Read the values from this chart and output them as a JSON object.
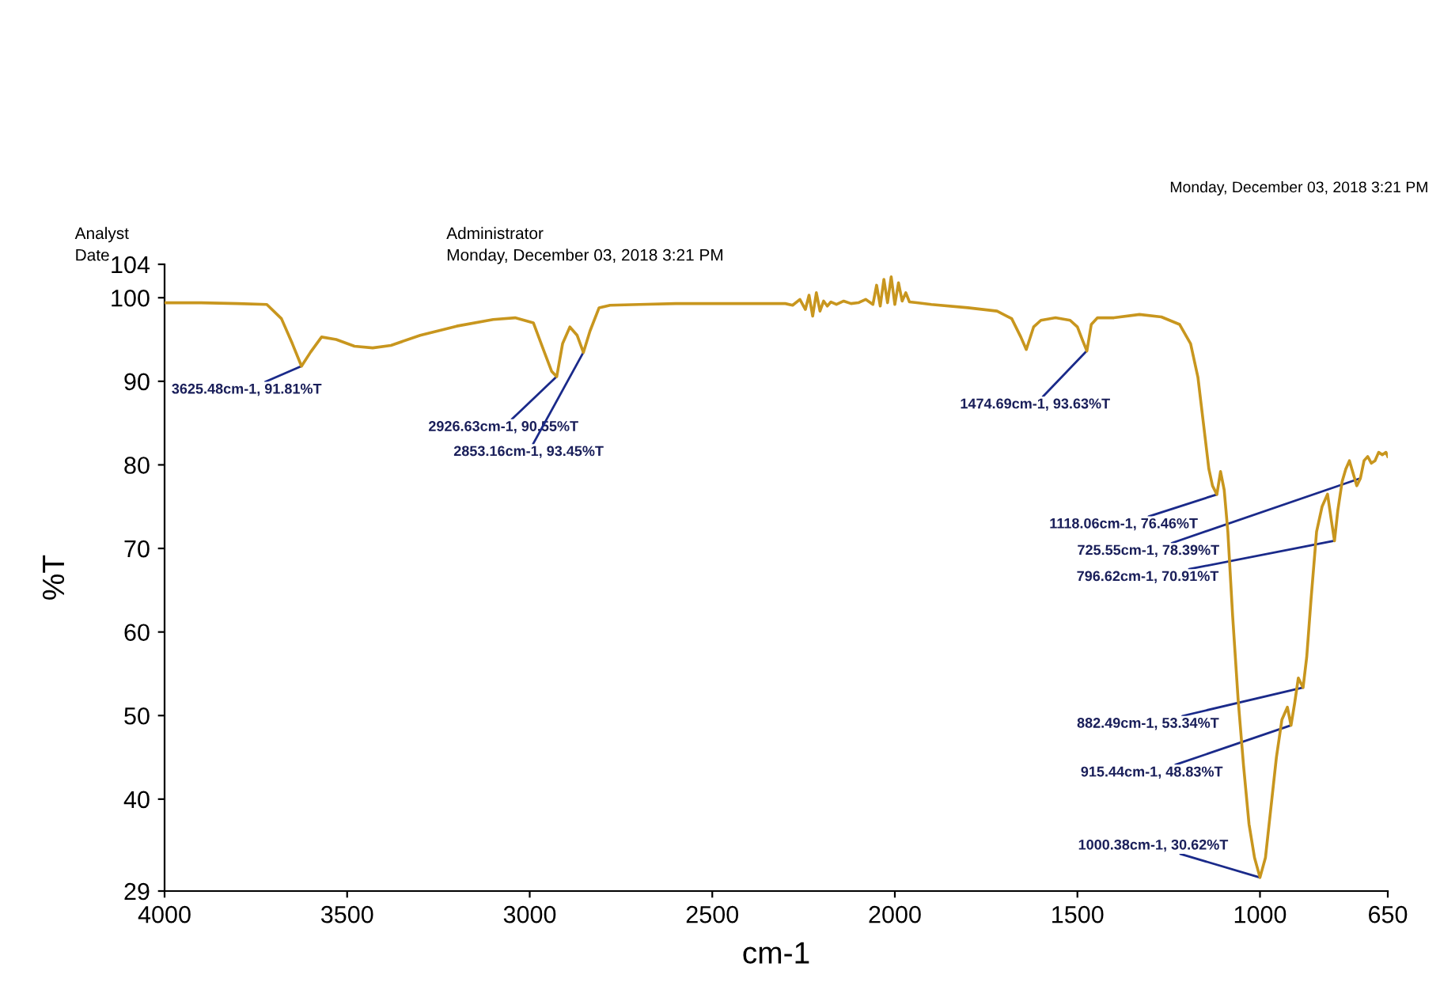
{
  "chart_data": {
    "type": "line",
    "xlabel": "cm-1",
    "ylabel": "%T",
    "xlim": [
      4000,
      650
    ],
    "xticks": [
      4000,
      3500,
      3000,
      2500,
      2000,
      1500,
      1000,
      650
    ],
    "ylim": [
      29,
      104
    ],
    "yticks": [
      29,
      40,
      50,
      60,
      70,
      80,
      90,
      100,
      104
    ],
    "grid": false,
    "marker": "none",
    "line_style": "solid",
    "series": [
      {
        "color": "#c8961e",
        "x": [
          4000,
          3900,
          3800,
          3720,
          3680,
          3650,
          3625,
          3600,
          3570,
          3530,
          3480,
          3430,
          3380,
          3300,
          3200,
          3100,
          3040,
          2990,
          2960,
          2940,
          2926,
          2910,
          2890,
          2870,
          2853,
          2835,
          2810,
          2780,
          2700,
          2600,
          2500,
          2400,
          2300,
          2280,
          2260,
          2245,
          2235,
          2225,
          2215,
          2205,
          2195,
          2185,
          2175,
          2160,
          2140,
          2120,
          2100,
          2080,
          2060,
          2050,
          2040,
          2030,
          2020,
          2010,
          2000,
          1990,
          1980,
          1970,
          1960,
          1940,
          1900,
          1800,
          1720,
          1680,
          1655,
          1640,
          1620,
          1600,
          1560,
          1520,
          1500,
          1485,
          1474,
          1462,
          1445,
          1400,
          1330,
          1270,
          1220,
          1190,
          1170,
          1155,
          1140,
          1130,
          1118,
          1108,
          1098,
          1088,
          1075,
          1060,
          1045,
          1030,
          1015,
          1000,
          985,
          970,
          955,
          940,
          925,
          915,
          905,
          895,
          882,
          872,
          860,
          845,
          830,
          815,
          805,
          796,
          787,
          775,
          765,
          755,
          745,
          735,
          725,
          715,
          705,
          695,
          685,
          675,
          665,
          655,
          650
        ],
        "values": [
          99.4,
          99.4,
          99.3,
          99.2,
          97.5,
          94.5,
          91.81,
          93.5,
          95.3,
          95.0,
          94.2,
          94.0,
          94.3,
          95.5,
          96.6,
          97.4,
          97.6,
          97.0,
          93.5,
          91.2,
          90.55,
          94.5,
          96.5,
          95.5,
          93.45,
          96.0,
          98.8,
          99.1,
          99.2,
          99.3,
          99.3,
          99.3,
          99.3,
          99.1,
          99.8,
          98.6,
          100.3,
          97.8,
          100.6,
          98.4,
          99.6,
          99.0,
          99.5,
          99.2,
          99.6,
          99.3,
          99.4,
          99.8,
          99.2,
          101.5,
          99.0,
          102.2,
          99.4,
          102.5,
          99.2,
          101.8,
          99.6,
          100.6,
          99.5,
          99.4,
          99.2,
          98.8,
          98.4,
          97.5,
          95.3,
          93.8,
          96.5,
          97.3,
          97.6,
          97.3,
          96.5,
          94.8,
          93.63,
          96.8,
          97.6,
          97.6,
          98.0,
          97.7,
          96.8,
          94.5,
          90.5,
          85.0,
          79.5,
          77.5,
          76.46,
          79.2,
          77.0,
          72.0,
          62.0,
          52.0,
          44.0,
          37.0,
          33.0,
          30.62,
          33.0,
          39.0,
          45.0,
          49.5,
          51.0,
          48.83,
          51.5,
          54.5,
          53.34,
          57.0,
          64.0,
          72.0,
          75.0,
          76.5,
          73.5,
          70.91,
          74.5,
          78.0,
          79.5,
          80.5,
          79.0,
          77.5,
          78.39,
          80.5,
          81.0,
          80.2,
          80.5,
          81.5,
          81.2,
          81.5,
          81.0
        ]
      }
    ],
    "annotations": [
      {
        "text": "3625.48cm-1, 91.81%T",
        "x": 3625.48,
        "y": 91.81
      },
      {
        "text": "2926.63cm-1, 90.55%T",
        "x": 2926.63,
        "y": 90.55
      },
      {
        "text": "2853.16cm-1, 93.45%T",
        "x": 2853.16,
        "y": 93.45
      },
      {
        "text": "1474.69cm-1, 93.63%T",
        "x": 1474.69,
        "y": 93.63
      },
      {
        "text": "1118.06cm-1, 76.46%T",
        "x": 1118.06,
        "y": 76.46
      },
      {
        "text": "725.55cm-1, 78.39%T",
        "x": 725.55,
        "y": 78.39
      },
      {
        "text": "796.62cm-1, 70.91%T",
        "x": 796.62,
        "y": 70.91
      },
      {
        "text": "882.49cm-1, 53.34%T",
        "x": 882.49,
        "y": 53.34
      },
      {
        "text": "915.44cm-1, 48.83%T",
        "x": 915.44,
        "y": 48.83
      },
      {
        "text": "1000.38cm-1, 30.62%T",
        "x": 1000.38,
        "y": 30.62
      },
      "Analyst",
      "Date",
      "Administrator",
      "Monday, December 03, 2018 3:21 PM",
      "Monday, December 03, 2018 3:21 PM"
    ]
  }
}
